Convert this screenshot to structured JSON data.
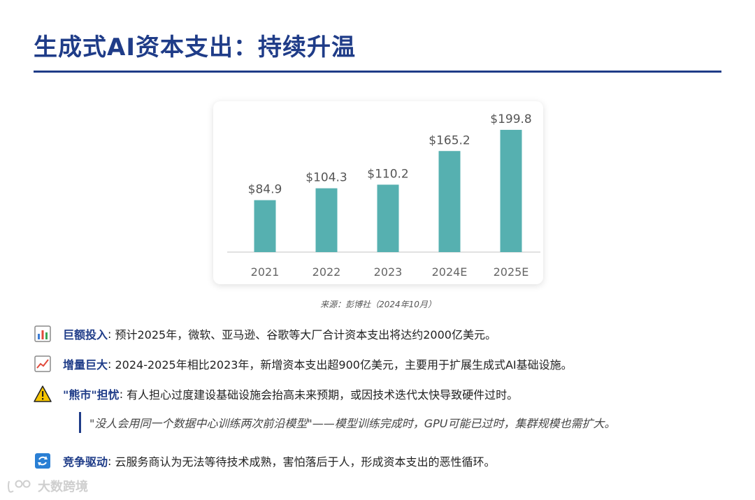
{
  "title": "生成式AI资本支出：持续升温",
  "chart_data": {
    "type": "bar",
    "categories": [
      "2021",
      "2022",
      "2023",
      "2024E",
      "2025E"
    ],
    "values": [
      84.9,
      104.3,
      110.2,
      165.2,
      199.8
    ],
    "value_labels": [
      "$84.9",
      "$104.3",
      "$110.2",
      "$165.2",
      "$199.8"
    ],
    "ylim": [
      0,
      210
    ],
    "bar_color": "#56b0b0",
    "grid": false
  },
  "source": "来源：彭博社（2024年10月）",
  "bullets": [
    {
      "icon": "bar-chart-icon",
      "key": "巨额投入",
      "text": "预计2025年，微软、亚马逊、谷歌等大厂合计资本支出将达约2000亿美元。"
    },
    {
      "icon": "trend-up-icon",
      "key": "增量巨大",
      "text": "2024-2025年相比2023年，新增资本支出超900亿美元，主要用于扩展生成式AI基础设施。"
    },
    {
      "icon": "warning-icon",
      "key": "\"熊市\"担忧",
      "text": "有人担心过度建设基础设施会抬高未来预期，或因技术迭代太快导致硬件过时。"
    },
    {
      "icon": "cycle-icon",
      "key": "竞争驱动",
      "text": "云服务商认为无法等待技术成熟，害怕落后于人，形成资本支出的恶性循环。"
    }
  ],
  "quote": "\"没人会用同一个数据中心训练两次前沿模型\"——模型训练完成时，GPU可能已过时，集群规模也需扩大。",
  "separator": ":",
  "watermark": "大数跨境",
  "colors": {
    "accent": "#1f3c88",
    "bar": "#56b0b0"
  }
}
